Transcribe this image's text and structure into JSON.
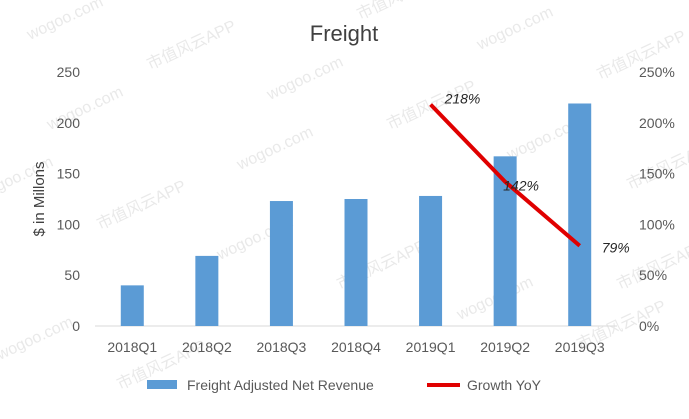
{
  "chart_data": {
    "type": "bar",
    "title": "Freight",
    "ylabel": "$ in Millons",
    "y2label": "",
    "categories": [
      "2018Q1",
      "2018Q2",
      "2018Q3",
      "2018Q4",
      "2019Q1",
      "2019Q2",
      "2019Q3"
    ],
    "ylim": [
      0,
      250
    ],
    "yticks": [
      "0",
      "50",
      "100",
      "150",
      "200",
      "250"
    ],
    "y2lim": [
      0,
      250
    ],
    "y2ticks": [
      "0%",
      "50%",
      "100%",
      "150%",
      "200%",
      "250%"
    ],
    "series": [
      {
        "name": "Freight Adjusted Net Revenue",
        "type": "bar",
        "axis": "left",
        "color": "#5b9bd5",
        "values": [
          40,
          69,
          123,
          125,
          128,
          167,
          219
        ]
      },
      {
        "name": "Growth YoY",
        "type": "line",
        "axis": "right",
        "color": "#e00000",
        "values": [
          null,
          null,
          null,
          null,
          218,
          142,
          79
        ],
        "labels": [
          "",
          "",
          "",
          "",
          "218%",
          "142%",
          "79%"
        ]
      }
    ],
    "legend": "bottom",
    "grid": false,
    "watermark": [
      "wogoo.com",
      "市值风云APP"
    ]
  }
}
